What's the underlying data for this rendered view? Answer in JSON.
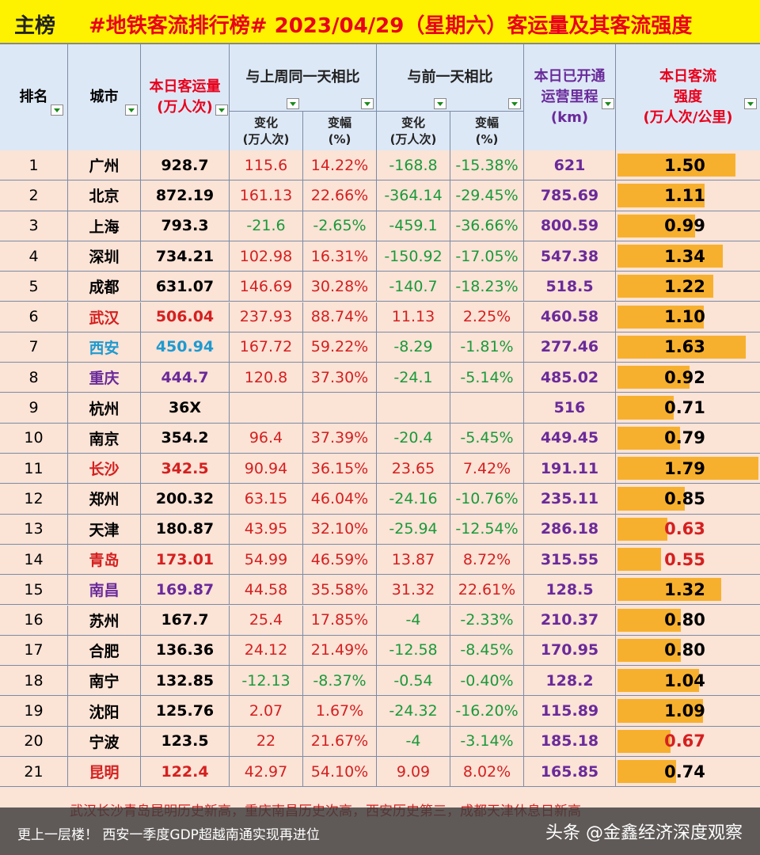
{
  "title": {
    "main": "主榜",
    "subtitle": "#地铁客流排行榜# 2023/04/29（星期六）客运量及其客流强度"
  },
  "headers": {
    "rank": "排名",
    "city": "城市",
    "daily": "本日客运量\n(万人次)",
    "week_compare": "与上周同一天相比",
    "prev_compare": "与前一天相比",
    "change": "变化\n(万人次)",
    "pct": "变幅\n(%)",
    "mileage": "本日已开通\n运营里程\n(km)",
    "intensity": "本日客流\n强度\n(万人次/公里)"
  },
  "rows": [
    {
      "rank": "1",
      "city": "广州",
      "daily": "928.7",
      "wk_chg": "115.6",
      "wk_pct": "14.22%",
      "pd_chg": "-168.8",
      "pd_pct": "-15.38%",
      "km": "621",
      "intensity": "1.50",
      "iv": 1.5
    },
    {
      "rank": "2",
      "city": "北京",
      "daily": "872.19",
      "wk_chg": "161.13",
      "wk_pct": "22.66%",
      "pd_chg": "-364.14",
      "pd_pct": "-29.45%",
      "km": "785.69",
      "intensity": "1.11",
      "iv": 1.11
    },
    {
      "rank": "3",
      "city": "上海",
      "daily": "793.3",
      "wk_chg": "-21.6",
      "wk_pct": "-2.65%",
      "pd_chg": "-459.1",
      "pd_pct": "-36.66%",
      "km": "800.59",
      "intensity": "0.99",
      "iv": 0.99
    },
    {
      "rank": "4",
      "city": "深圳",
      "daily": "734.21",
      "wk_chg": "102.98",
      "wk_pct": "16.31%",
      "pd_chg": "-150.92",
      "pd_pct": "-17.05%",
      "km": "547.38",
      "intensity": "1.34",
      "iv": 1.34
    },
    {
      "rank": "5",
      "city": "成都",
      "daily": "631.07",
      "wk_chg": "146.69",
      "wk_pct": "30.28%",
      "pd_chg": "-140.7",
      "pd_pct": "-18.23%",
      "km": "518.5",
      "intensity": "1.22",
      "iv": 1.22
    },
    {
      "rank": "6",
      "city": "武汉",
      "daily": "506.04",
      "wk_chg": "237.93",
      "wk_pct": "88.74%",
      "pd_chg": "11.13",
      "pd_pct": "2.25%",
      "km": "460.58",
      "intensity": "1.10",
      "iv": 1.1,
      "hl": "#d42020"
    },
    {
      "rank": "7",
      "city": "西安",
      "daily": "450.94",
      "wk_chg": "167.72",
      "wk_pct": "59.22%",
      "pd_chg": "-8.29",
      "pd_pct": "-1.81%",
      "km": "277.46",
      "intensity": "1.63",
      "iv": 1.63,
      "hl": "#1e9ad0"
    },
    {
      "rank": "8",
      "city": "重庆",
      "daily": "444.7",
      "wk_chg": "120.8",
      "wk_pct": "37.30%",
      "pd_chg": "-24.1",
      "pd_pct": "-5.14%",
      "km": "485.02",
      "intensity": "0.92",
      "iv": 0.92,
      "hl": "#6a2a9a"
    },
    {
      "rank": "9",
      "city": "杭州",
      "daily": "36X",
      "wk_chg": "",
      "wk_pct": "",
      "pd_chg": "",
      "pd_pct": "",
      "km": "516",
      "intensity": "0.71",
      "iv": 0.71
    },
    {
      "rank": "10",
      "city": "南京",
      "daily": "354.2",
      "wk_chg": "96.4",
      "wk_pct": "37.39%",
      "pd_chg": "-20.4",
      "pd_pct": "-5.45%",
      "km": "449.45",
      "intensity": "0.79",
      "iv": 0.79
    },
    {
      "rank": "11",
      "city": "长沙",
      "daily": "342.5",
      "wk_chg": "90.94",
      "wk_pct": "36.15%",
      "pd_chg": "23.65",
      "pd_pct": "7.42%",
      "km": "191.11",
      "intensity": "1.79",
      "iv": 1.79,
      "hl": "#d42020"
    },
    {
      "rank": "12",
      "city": "郑州",
      "daily": "200.32",
      "wk_chg": "63.15",
      "wk_pct": "46.04%",
      "pd_chg": "-24.16",
      "pd_pct": "-10.76%",
      "km": "235.11",
      "intensity": "0.85",
      "iv": 0.85
    },
    {
      "rank": "13",
      "city": "天津",
      "daily": "180.87",
      "wk_chg": "43.95",
      "wk_pct": "32.10%",
      "pd_chg": "-25.94",
      "pd_pct": "-12.54%",
      "km": "286.18",
      "intensity": "0.63",
      "iv": 0.63,
      "ivred": true
    },
    {
      "rank": "14",
      "city": "青岛",
      "daily": "173.01",
      "wk_chg": "54.99",
      "wk_pct": "46.59%",
      "pd_chg": "13.87",
      "pd_pct": "8.72%",
      "km": "315.55",
      "intensity": "0.55",
      "iv": 0.55,
      "hl": "#d42020",
      "ivred": true
    },
    {
      "rank": "15",
      "city": "南昌",
      "daily": "169.87",
      "wk_chg": "44.58",
      "wk_pct": "35.58%",
      "pd_chg": "31.32",
      "pd_pct": "22.61%",
      "km": "128.5",
      "intensity": "1.32",
      "iv": 1.32,
      "hl": "#6a2a9a"
    },
    {
      "rank": "16",
      "city": "苏州",
      "daily": "167.7",
      "wk_chg": "25.4",
      "wk_pct": "17.85%",
      "pd_chg": "-4",
      "pd_pct": "-2.33%",
      "km": "210.37",
      "intensity": "0.80",
      "iv": 0.8
    },
    {
      "rank": "17",
      "city": "合肥",
      "daily": "136.36",
      "wk_chg": "24.12",
      "wk_pct": "21.49%",
      "pd_chg": "-12.58",
      "pd_pct": "-8.45%",
      "km": "170.95",
      "intensity": "0.80",
      "iv": 0.8
    },
    {
      "rank": "18",
      "city": "南宁",
      "daily": "132.85",
      "wk_chg": "-12.13",
      "wk_pct": "-8.37%",
      "pd_chg": "-0.54",
      "pd_pct": "-0.40%",
      "km": "128.2",
      "intensity": "1.04",
      "iv": 1.04
    },
    {
      "rank": "19",
      "city": "沈阳",
      "daily": "125.76",
      "wk_chg": "2.07",
      "wk_pct": "1.67%",
      "pd_chg": "-24.32",
      "pd_pct": "-16.20%",
      "km": "115.89",
      "intensity": "1.09",
      "iv": 1.09
    },
    {
      "rank": "20",
      "city": "宁波",
      "daily": "123.5",
      "wk_chg": "22",
      "wk_pct": "21.67%",
      "pd_chg": "-4",
      "pd_pct": "-3.14%",
      "km": "185.18",
      "intensity": "0.67",
      "iv": 0.67,
      "ivred": true
    },
    {
      "rank": "21",
      "city": "昆明",
      "daily": "122.4",
      "wk_chg": "42.97",
      "wk_pct": "54.10%",
      "pd_chg": "9.09",
      "pd_pct": "8.02%",
      "km": "165.85",
      "intensity": "0.74",
      "iv": 0.74,
      "hl": "#d42020"
    }
  ],
  "note": "武汉长沙青岛昆明历史新高，重庆南昌历史次高，西安历史第三，成都天津休息日新高",
  "footer": {
    "left": "更上一层楼！ 西安一季度GDP超越南通实现再进位",
    "right": "头条 @金鑫经济深度观察"
  },
  "colors": {
    "up": "#d42020",
    "down": "#1a9a3a",
    "bar": "#f7b02e",
    "title_bg": "#fff200",
    "header_bg": "#dde8f6"
  }
}
